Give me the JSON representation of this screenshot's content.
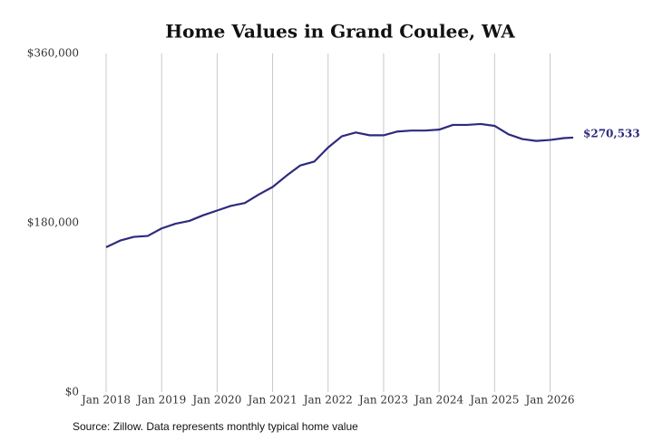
{
  "chart_data": {
    "type": "line",
    "title": "Home Values in Grand Coulee, WA",
    "source": "Source: Zillow. Data represents monthly typical home value",
    "x": [
      "2018-01",
      "2018-04",
      "2018-07",
      "2018-10",
      "2019-01",
      "2019-04",
      "2019-07",
      "2019-10",
      "2020-01",
      "2020-04",
      "2020-07",
      "2020-10",
      "2021-01",
      "2021-04",
      "2021-07",
      "2021-10",
      "2022-01",
      "2022-04",
      "2022-07",
      "2022-10",
      "2023-01",
      "2023-04",
      "2023-07",
      "2023-10",
      "2024-01",
      "2024-04",
      "2024-07",
      "2024-10",
      "2025-01",
      "2025-04",
      "2025-07",
      "2025-10",
      "2026-01",
      "2026-04",
      "2026-06"
    ],
    "series": [
      {
        "name": "Home value",
        "color": "#2e2a7d",
        "values": [
          154000,
          161000,
          165000,
          166000,
          174000,
          179000,
          182000,
          188000,
          193000,
          198000,
          201000,
          210000,
          218000,
          230000,
          241000,
          245000,
          260000,
          272000,
          276000,
          273000,
          273000,
          277000,
          278000,
          278000,
          279000,
          284000,
          284000,
          285000,
          283000,
          274000,
          269000,
          267000,
          268000,
          270000,
          270533
        ],
        "value_labels": [
          null,
          null,
          null,
          null,
          null,
          null,
          null,
          null,
          null,
          null,
          null,
          null,
          null,
          null,
          null,
          null,
          null,
          null,
          null,
          null,
          null,
          null,
          null,
          null,
          null,
          null,
          null,
          null,
          null,
          null,
          null,
          null,
          null,
          null,
          "$270,533"
        ]
      }
    ],
    "xlim": [
      "2018-01",
      "2026-06"
    ],
    "xticks": [
      {
        "value": "2018-01",
        "label": "Jan 2018"
      },
      {
        "value": "2019-01",
        "label": "Jan 2019"
      },
      {
        "value": "2020-01",
        "label": "Jan 2020"
      },
      {
        "value": "2021-01",
        "label": "Jan 2021"
      },
      {
        "value": "2022-01",
        "label": "Jan 2022"
      },
      {
        "value": "2023-01",
        "label": "Jan 2023"
      },
      {
        "value": "2024-01",
        "label": "Jan 2024"
      },
      {
        "value": "2025-01",
        "label": "Jan 2025"
      },
      {
        "value": "2026-01",
        "label": "Jan 2026"
      }
    ],
    "ylim": [
      0,
      360000
    ],
    "yticks": [
      {
        "value": 0,
        "label": "$0"
      },
      {
        "value": 180000,
        "label": "$180,000"
      },
      {
        "value": 360000,
        "label": "$360,000"
      }
    ],
    "grid": "x"
  }
}
